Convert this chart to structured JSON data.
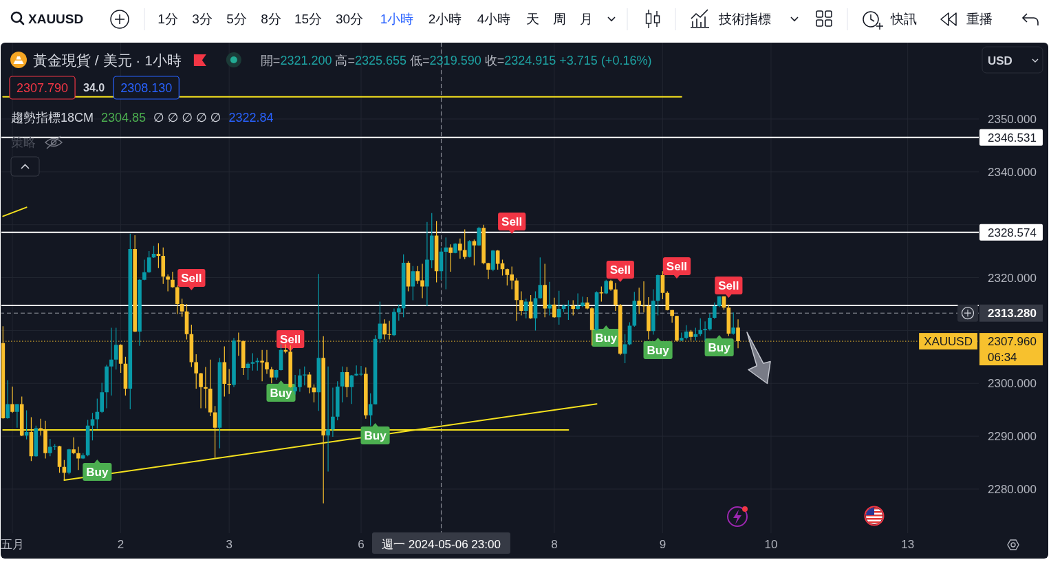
{
  "chart_data": {
    "type": "candlestick",
    "title": "黃金現貨 / 美元 · 1小時",
    "subtitle": "開=2321.200 高=2325.655 低=2319.590 收=2324.915 +3.715 (+0.16%)",
    "categories": [
      null,
      null,
      "五月",
      null,
      null,
      null,
      null,
      null,
      null,
      null,
      null,
      null,
      null,
      null,
      null,
      null,
      null,
      null,
      null,
      null,
      null,
      null,
      null,
      null,
      null,
      "2",
      null,
      null,
      null,
      null,
      null,
      null,
      null,
      null,
      null,
      null,
      null,
      null,
      null,
      null,
      null,
      null,
      null,
      null,
      null,
      null,
      null,
      null,
      "3",
      null,
      null,
      null,
      null,
      null,
      null,
      null,
      null,
      null,
      null,
      null,
      null,
      null,
      null,
      null,
      null,
      null,
      null,
      null,
      null,
      null,
      null,
      null,
      null,
      null,
      null,
      null,
      "6",
      null,
      null,
      null,
      null,
      null,
      null,
      null,
      null,
      null,
      null,
      null,
      null,
      null,
      null,
      null,
      null,
      "週一 2024-05-06 23:00",
      null,
      null,
      null,
      null,
      null,
      null,
      null,
      null,
      null,
      null,
      null,
      null,
      null,
      null,
      null,
      null,
      null,
      null,
      null,
      null,
      null,
      null,
      null,
      "8",
      null,
      null,
      null,
      null,
      null,
      null,
      null,
      null,
      null,
      null,
      null,
      null,
      null,
      null,
      null,
      null,
      null,
      null,
      null,
      null,
      null,
      null,
      "9",
      null,
      null,
      null,
      null,
      null,
      null,
      null,
      null,
      null,
      null,
      null,
      null,
      null,
      null,
      null,
      null,
      null,
      null,
      null,
      null,
      null,
      null,
      "10",
      null,
      null,
      null,
      null,
      null,
      null,
      null,
      null,
      null,
      null,
      null,
      null,
      null,
      null,
      null,
      null,
      null,
      null,
      null,
      null,
      null,
      null,
      null,
      null,
      null,
      null,
      null,
      null,
      "13",
      null,
      null,
      null,
      null,
      null,
      null,
      null,
      null,
      null,
      null,
      null,
      null,
      null,
      null
    ],
    "ohlc": [
      [
        2307.6,
        2310.8,
        2293.3,
        2293.4
      ],
      [
        2293.4,
        2300.6,
        2293.3,
        2296.05
      ],
      [
        2296.05,
        2299.4,
        2294.4,
        2294.6
      ],
      [
        2294.6,
        2296.1,
        2291.6,
        2296.05
      ],
      [
        2296.05,
        2297.5,
        2290.0,
        2290.1
      ],
      [
        2290.1,
        2294.9,
        2289.4,
        2290.8
      ],
      [
        2290.8,
        2293.6,
        2285.3,
        2286.2
      ],
      [
        2286.2,
        2292.0,
        2286.1,
        2291.5
      ],
      [
        2291.5,
        2293.3,
        2290.1,
        2291.2
      ],
      [
        2291.2,
        2292.9,
        2285.8,
        2286.8
      ],
      [
        2286.8,
        2289.5,
        2286.2,
        2288.0
      ],
      [
        2288.0,
        2288.5,
        2287.4,
        2288.1
      ],
      [
        2288.1,
        2288.2,
        2283.1,
        2284.2
      ],
      [
        2284.2,
        2285.5,
        2281.8,
        2283.1
      ],
      [
        2283.1,
        2287.6,
        2282.8,
        2287.5
      ],
      [
        2287.5,
        2289.8,
        2286.6,
        2286.8
      ],
      [
        2286.8,
        2288.0,
        2283.6,
        2285.8
      ],
      [
        2285.8,
        2286.8,
        2285.7,
        2286.4
      ],
      [
        2286.4,
        2293.1,
        2286.2,
        2292.0
      ],
      [
        2292.0,
        2294.4,
        2289.2,
        2293.2
      ],
      [
        2293.2,
        2297.1,
        2291.4,
        2294.6
      ],
      [
        2294.6,
        2300.1,
        2294.4,
        2298.3
      ],
      [
        2298.3,
        2303.5,
        2295.3,
        2303.2
      ],
      [
        2303.2,
        2310.5,
        2297.7,
        2304.5
      ],
      [
        2304.5,
        2310.5,
        2302.6,
        2307.3
      ],
      [
        2307.3,
        2307.4,
        2302.0,
        2303.7
      ],
      [
        2303.7,
        2305.0,
        2297.7,
        2299.0
      ],
      [
        2299.0,
        2328.3,
        2295.1,
        2325.4
      ],
      [
        2325.4,
        2328.0,
        2309.7,
        2309.8
      ],
      [
        2309.8,
        2319.7,
        2307.1,
        2319.6
      ],
      [
        2319.6,
        2323.4,
        2319.5,
        2321.0
      ],
      [
        2321.0,
        2325.0,
        2320.9,
        2323.8
      ],
      [
        2323.8,
        2326.0,
        2323.7,
        2324.5
      ],
      [
        2324.5,
        2326.5,
        2321.8,
        2324.1
      ],
      [
        2324.1,
        2325.7,
        2318.8,
        2320.2
      ],
      [
        2320.2,
        2320.6,
        2317.4,
        2319.6
      ],
      [
        2319.6,
        2321.1,
        2318.1,
        2318.2
      ],
      [
        2318.2,
        2318.5,
        2313.1,
        2315.0
      ],
      [
        2315.0,
        2316.0,
        2312.6,
        2313.6
      ],
      [
        2313.6,
        2315.0,
        2308.3,
        2309.3
      ],
      [
        2309.3,
        2311.1,
        2303.1,
        2304.0
      ],
      [
        2304.0,
        2305.5,
        2299.0,
        2301.9
      ],
      [
        2301.9,
        2302.0,
        2295.3,
        2299.3
      ],
      [
        2299.3,
        2303.1,
        2295.3,
        2299.0
      ],
      [
        2299.0,
        2304.5,
        2293.8,
        2294.5
      ],
      [
        2294.5,
        2295.7,
        2285.9,
        2291.6
      ],
      [
        2291.6,
        2304.8,
        2287.7,
        2304.0
      ],
      [
        2304.0,
        2307.0,
        2297.5,
        2299.9
      ],
      [
        2299.9,
        2302.7,
        2298.0,
        2299.7
      ],
      [
        2299.7,
        2308.6,
        2299.3,
        2308.1
      ],
      [
        2308.1,
        2309.6,
        2305.2,
        2307.95
      ],
      [
        2308.0,
        2308.1,
        2301.6,
        2302.9
      ],
      [
        2302.9,
        2304.0,
        2300.7,
        2303.7
      ],
      [
        2303.7,
        2305.7,
        2302.4,
        2304.0
      ],
      [
        2304.0,
        2304.8,
        2302.4,
        2304.25
      ],
      [
        2304.25,
        2306.3,
        2300.4,
        2303.95
      ],
      [
        2304.0,
        2306.3,
        2301.8,
        2302.65
      ],
      [
        2302.65,
        2303.1,
        2300.0,
        2301.1
      ],
      [
        2301.1,
        2302.6,
        2300.7,
        2302.5
      ],
      [
        2302.5,
        2307.4,
        2302.4,
        2306.3
      ],
      [
        2306.3,
        2307.4,
        2305.7,
        2306.0
      ],
      [
        2306.0,
        2307.2,
        2299.2,
        2299.3
      ],
      [
        2298.5,
        2301.6,
        2297.9,
        2299.3
      ],
      [
        2299.3,
        2302.7,
        2298.4,
        2301.5
      ],
      [
        2301.5,
        2303.2,
        2299.6,
        2301.65
      ],
      [
        2301.65,
        2302.1,
        2298.1,
        2299.2
      ],
      [
        2299.2,
        2299.8,
        2296.4,
        2298.3
      ],
      [
        2298.3,
        2320.7,
        2294.8,
        2304.8
      ],
      [
        2304.8,
        2308.9,
        2277.3,
        2290.15
      ],
      [
        2290.15,
        2303.2,
        2283.3,
        2291.3
      ],
      [
        2291.3,
        2299.2,
        2289.9,
        2293.7
      ],
      [
        2293.7,
        2300.4,
        2293.0,
        2299.4
      ],
      [
        2299.4,
        2303.2,
        2296.4,
        2302.1
      ],
      [
        2302.1,
        2303.1,
        2297.4,
        2299.3
      ],
      [
        2299.3,
        2301.6,
        2296.1,
        2301.5
      ],
      [
        2301.5,
        2303.4,
        2301.4,
        2301.8
      ],
      [
        2301.8,
        2303.3,
        2301.4,
        2301.8
      ],
      [
        2301.8,
        2303.0,
        2293.3,
        2293.95
      ],
      [
        2293.95,
        2298.1,
        2292.0,
        2296.05
      ],
      [
        2296.05,
        2309.1,
        2296.0,
        2308.4
      ],
      [
        2308.4,
        2315.45,
        2307.6,
        2311.3
      ],
      [
        2311.3,
        2312.1,
        2308.3,
        2309.25
      ],
      [
        2309.3,
        2311.8,
        2308.3,
        2309.2
      ],
      [
        2309.1,
        2314.15,
        2308.95,
        2313.5
      ],
      [
        2313.4,
        2314.9,
        2311.85,
        2314.2
      ],
      [
        2314.2,
        2324.4,
        2312.5,
        2322.8
      ],
      [
        2322.8,
        2323.1,
        2317.4,
        2318.3
      ],
      [
        2318.3,
        2322.2,
        2315.7,
        2321.2
      ],
      [
        2321.2,
        2322.2,
        2318.8,
        2319.4
      ],
      [
        2319.5,
        2322.6,
        2316.1,
        2318.3
      ],
      [
        2318.3,
        2330.5,
        2314.6,
        2323.4
      ],
      [
        2323.3,
        2332.2,
        2321.75,
        2327.95
      ],
      [
        2327.95,
        2330.7,
        2319.1,
        2321.2
      ],
      [
        2321.2,
        2325.655,
        2319.59,
        2324.915
      ],
      [
        2324.9,
        2327.6,
        2317.8,
        2325.7
      ],
      [
        2325.7,
        2326.3,
        2321.1,
        2324.65
      ],
      [
        2324.65,
        2326.5,
        2324.6,
        2326.4
      ],
      [
        2326.4,
        2327.4,
        2323.6,
        2325.1
      ],
      [
        2325.2,
        2329.1,
        2323.5,
        2323.9
      ],
      [
        2323.9,
        2327.05,
        2323.8,
        2326.9
      ],
      [
        2326.9,
        2327.2,
        2322.3,
        2326.1
      ],
      [
        2326.1,
        2329.6,
        2326.0,
        2329.4
      ],
      [
        2329.4,
        2330.0,
        2322.5,
        2322.75
      ],
      [
        2322.75,
        2322.8,
        2319.7,
        2321.5
      ],
      [
        2321.5,
        2325.2,
        2321.2,
        2325.1
      ],
      [
        2325.1,
        2325.2,
        2321.5,
        2322.6
      ],
      [
        2322.7,
        2323.4,
        2320.4,
        2321.6
      ],
      [
        2321.6,
        2321.7,
        2318.5,
        2320.5
      ],
      [
        2320.6,
        2322.1,
        2317.8,
        2319.45
      ],
      [
        2319.45,
        2319.9,
        2311.8,
        2315.75
      ],
      [
        2315.75,
        2317.4,
        2312.85,
        2313.7
      ],
      [
        2313.7,
        2316.0,
        2312.3,
        2315.45
      ],
      [
        2315.45,
        2316.7,
        2312.2,
        2312.3
      ],
      [
        2312.3,
        2317.4,
        2310.0,
        2316.1
      ],
      [
        2316.1,
        2323.8,
        2316.0,
        2318.6
      ],
      [
        2318.6,
        2322.6,
        2312.5,
        2314.15
      ],
      [
        2314.15,
        2319.2,
        2312.85,
        2314.9
      ],
      [
        2314.9,
        2316.2,
        2312.4,
        2312.5
      ],
      [
        2312.5,
        2317.5,
        2311.1,
        2314.1
      ],
      [
        2314.1,
        2314.9,
        2313.5,
        2314.7
      ],
      [
        2314.6,
        2315.7,
        2312.0,
        2314.8
      ],
      [
        2314.7,
        2315.7,
        2312.85,
        2314.1
      ],
      [
        2314.1,
        2317.0,
        2313.9,
        2314.6
      ],
      [
        2314.6,
        2316.4,
        2314.4,
        2315.3
      ],
      [
        2315.3,
        2316.3,
        2314.0,
        2314.15
      ],
      [
        2314.2,
        2314.45,
        2307.2,
        2310.1
      ],
      [
        2310.1,
        2317.4,
        2310.0,
        2317.2
      ],
      [
        2317.2,
        2318.3,
        2315.45,
        2317.0
      ],
      [
        2317.0,
        2319.6,
        2316.9,
        2319.35
      ],
      [
        2319.35,
        2319.6,
        2317.5,
        2317.75
      ],
      [
        2317.75,
        2319.0,
        2313.7,
        2314.8
      ],
      [
        2314.8,
        2315.0,
        2305.35,
        2305.6
      ],
      [
        2305.6,
        2309.3,
        2303.8,
        2307.4
      ],
      [
        2307.4,
        2311.55,
        2307.2,
        2310.9
      ],
      [
        2310.9,
        2317.3,
        2310.7,
        2315.6
      ],
      [
        2315.6,
        2318.1,
        2313.1,
        2314.7
      ],
      [
        2314.7,
        2319.3,
        2313.4,
        2314.6
      ],
      [
        2314.6,
        2316.3,
        2308.3,
        2309.9
      ],
      [
        2309.9,
        2317.8,
        2309.2,
        2315.6
      ],
      [
        2315.6,
        2320.6,
        2312.85,
        2320.45
      ],
      [
        2320.45,
        2321.2,
        2315.9,
        2317.1
      ],
      [
        2317.1,
        2317.4,
        2313.8,
        2313.85
      ],
      [
        2313.85,
        2313.9,
        2311.5,
        2312.75
      ],
      [
        2312.75,
        2312.8,
        2307.9,
        2308.1
      ],
      [
        2308.1,
        2309.6,
        2308.0,
        2308.6
      ],
      [
        2308.6,
        2311.0,
        2308.3,
        2309.8
      ],
      [
        2309.8,
        2310.1,
        2308.1,
        2308.8
      ],
      [
        2308.8,
        2310.5,
        2308.1,
        2309.3
      ],
      [
        2309.3,
        2312.3,
        2308.95,
        2310.1
      ],
      [
        2310.1,
        2311.7,
        2308.1,
        2310.3
      ],
      [
        2310.2,
        2313.2,
        2310.0,
        2312.4
      ],
      [
        2312.4,
        2315.3,
        2312.2,
        2314.6
      ],
      [
        2314.6,
        2316.5,
        2314.4,
        2316.45
      ],
      [
        2316.45,
        2316.5,
        2313.9,
        2314.3
      ],
      [
        2314.3,
        2314.9,
        2308.95,
        2309.4
      ],
      [
        2309.4,
        2313.4,
        2309.2,
        2310.55
      ],
      [
        2310.55,
        2312.1,
        2306.65,
        2307.96
      ],
      null,
      null,
      null,
      null,
      null,
      null,
      null,
      null,
      null,
      null,
      null,
      null,
      null,
      null,
      null,
      null,
      null,
      null,
      null,
      null,
      null,
      null,
      null,
      null,
      null,
      null,
      null,
      null,
      null,
      null,
      null,
      null,
      null,
      null,
      null,
      null,
      null,
      null,
      null,
      null,
      null,
      null,
      null,
      null,
      null,
      null,
      null,
      null,
      null,
      null
    ],
    "colors": [
      "#fbc02d",
      "#089aa8",
      "#fbc02d",
      "#089aa8",
      "#fbc02d",
      "#089aa8",
      "#fbc02d",
      "#089aa8",
      "#fbc02d",
      "#fbc02d",
      "#089aa8",
      "#089aa8",
      "#fbc02d",
      "#fbc02d",
      "#089aa8",
      "#fbc02d",
      "#fbc02d",
      "#089aa8",
      "#089aa8",
      "#089aa8",
      "#089aa8",
      "#089aa8",
      "#089aa8",
      "#089aa8",
      "#089aa8",
      "#fbc02d",
      "#fbc02d",
      "#089aa8",
      "#fbc02d",
      "#089aa8",
      "#089aa8",
      "#089aa8",
      "#089aa8",
      "#fbc02d",
      "#fbc02d",
      "#fbc02d",
      "#fbc02d",
      "#fbc02d",
      "#fbc02d",
      "#fbc02d",
      "#fbc02d",
      "#fbc02d",
      "#fbc02d",
      "#fbc02d",
      "#fbc02d",
      "#fbc02d",
      "#089aa8",
      "#fbc02d",
      "#fbc02d",
      "#089aa8",
      "#fbc02d",
      "#fbc02d",
      "#089aa8",
      "#089aa8",
      "#089aa8",
      "#fbc02d",
      "#fbc02d",
      "#fbc02d",
      "#089aa8",
      "#089aa8",
      "#fbc02d",
      "#fbc02d",
      "#089aa8",
      "#089aa8",
      "#089aa8",
      "#fbc02d",
      "#fbc02d",
      "#089aa8",
      "#fbc02d",
      "#089aa8",
      "#089aa8",
      "#089aa8",
      "#089aa8",
      "#fbc02d",
      "#089aa8",
      "#089aa8",
      "#089aa8",
      "#fbc02d",
      "#089aa8",
      "#089aa8",
      "#089aa8",
      "#fbc02d",
      "#fbc02d",
      "#089aa8",
      "#089aa8",
      "#089aa8",
      "#fbc02d",
      "#089aa8",
      "#fbc02d",
      "#fbc02d",
      "#089aa8",
      "#089aa8",
      "#fbc02d",
      "#089aa8",
      "#089aa8",
      "#fbc02d",
      "#089aa8",
      "#fbc02d",
      "#fbc02d",
      "#089aa8",
      "#fbc02d",
      "#089aa8",
      "#fbc02d",
      "#fbc02d",
      "#089aa8",
      "#fbc02d",
      "#fbc02d",
      "#fbc02d",
      "#fbc02d",
      "#fbc02d",
      "#fbc02d",
      "#089aa8",
      "#fbc02d",
      "#089aa8",
      "#089aa8",
      "#fbc02d",
      "#089aa8",
      "#fbc02d",
      "#089aa8",
      "#089aa8",
      "#089aa8",
      "#fbc02d",
      "#089aa8",
      "#089aa8",
      "#fbc02d",
      "#fbc02d",
      "#089aa8",
      "#fbc02d",
      "#089aa8",
      "#fbc02d",
      "#fbc02d",
      "#fbc02d",
      "#089aa8",
      "#089aa8",
      "#089aa8",
      "#fbc02d",
      "#fbc02d",
      "#fbc02d",
      "#089aa8",
      "#089aa8",
      "#fbc02d",
      "#fbc02d",
      "#fbc02d",
      "#fbc02d",
      "#089aa8",
      "#089aa8",
      "#fbc02d",
      "#089aa8",
      "#089aa8",
      "#089aa8",
      "#089aa8",
      "#089aa8",
      "#089aa8",
      "#fbc02d",
      "#fbc02d",
      "#089aa8",
      "#fbc02d",
      null,
      null,
      null,
      null,
      null,
      null,
      null,
      null,
      null,
      null,
      null,
      null,
      null,
      null,
      null,
      null,
      null,
      null,
      null,
      null,
      null,
      null,
      null,
      null,
      null,
      null,
      null,
      null,
      null,
      null,
      null,
      null,
      null,
      null,
      null,
      null,
      null,
      null,
      null,
      null,
      null,
      null,
      null,
      null,
      null,
      null,
      null,
      null,
      null,
      null
    ],
    "series": [
      {
        "type": "line",
        "color": "#f5e11e",
        "values": [
          2354.2,
          null,
          null,
          null,
          null,
          null,
          null,
          null,
          null,
          null,
          null,
          null,
          null,
          null,
          null,
          null,
          null,
          null,
          null,
          null,
          null,
          null,
          null,
          null,
          null,
          null,
          null,
          null,
          null,
          null,
          null,
          null,
          null,
          null,
          null,
          null,
          null,
          null,
          null,
          null,
          null,
          null,
          null,
          null,
          null,
          null,
          null,
          null,
          null,
          null,
          null,
          null,
          null,
          null,
          null,
          null,
          null,
          null,
          null,
          null,
          null,
          null,
          null,
          null,
          null,
          null,
          null,
          null,
          null,
          null,
          null,
          null,
          null,
          null,
          null,
          null,
          null,
          null,
          null,
          null,
          null,
          null,
          null,
          null,
          null,
          null,
          null,
          null,
          null,
          null,
          null,
          null,
          null,
          null,
          null,
          null,
          null,
          null,
          null,
          null,
          null,
          null,
          null,
          null,
          null,
          null,
          null,
          null,
          null,
          null,
          null,
          null,
          null,
          null,
          null,
          null,
          null,
          null,
          null,
          null,
          null,
          null,
          null,
          null,
          null,
          null,
          null,
          null,
          null,
          null,
          null,
          null,
          null,
          null,
          null,
          null,
          null,
          null,
          null,
          null,
          null,
          null,
          null,
          null,
          2354.2,
          null,
          null,
          null,
          null,
          null,
          null,
          null,
          null,
          null,
          null,
          null,
          null,
          null,
          null,
          null,
          null,
          null,
          null,
          null,
          null,
          null,
          null,
          null,
          null,
          null,
          null,
          null,
          null,
          null,
          null,
          null,
          null,
          null,
          null,
          null,
          null,
          null,
          null,
          null,
          null,
          null,
          null,
          null,
          null,
          null,
          null,
          null,
          null,
          null,
          null,
          null,
          null,
          null,
          null,
          null,
          null,
          null,
          null,
          null,
          null,
          null,
          null
        ]
      },
      {
        "type": "line",
        "color": "#f5e11e",
        "values": [
          2291.2,
          null,
          null,
          null,
          null,
          null,
          null,
          null,
          null,
          null,
          null,
          null,
          null,
          null,
          null,
          null,
          null,
          null,
          null,
          null,
          null,
          null,
          null,
          null,
          null,
          null,
          null,
          null,
          null,
          null,
          null,
          null,
          null,
          null,
          null,
          null,
          null,
          null,
          null,
          null,
          null,
          null,
          null,
          null,
          null,
          null,
          null,
          null,
          null,
          null,
          null,
          null,
          null,
          null,
          null,
          null,
          null,
          null,
          null,
          null,
          null,
          null,
          null,
          null,
          null,
          null,
          null,
          null,
          null,
          null,
          null,
          null,
          null,
          null,
          null,
          null,
          null,
          null,
          null,
          null,
          null,
          null,
          null,
          null,
          null,
          null,
          null,
          null,
          null,
          null,
          null,
          null,
          null,
          null,
          null,
          null,
          null,
          null,
          null,
          null,
          null,
          null,
          null,
          null,
          null,
          null,
          null,
          null,
          null,
          null,
          null,
          null,
          null,
          null,
          null,
          null,
          null,
          null,
          null,
          null,
          2291.2,
          null,
          null,
          null,
          null,
          null,
          null,
          null,
          null,
          null,
          null,
          null,
          null,
          null,
          null,
          null,
          null,
          null,
          null,
          null,
          null,
          null,
          null,
          null,
          null,
          null,
          null,
          null,
          null,
          null,
          null,
          null,
          null,
          null,
          null,
          null,
          null,
          null,
          null,
          null,
          null,
          null,
          null,
          null,
          null,
          null,
          null,
          null,
          null,
          null,
          null,
          null,
          null,
          null,
          null,
          null,
          null,
          null,
          null,
          null,
          null,
          null,
          null,
          null,
          null,
          null,
          null,
          null,
          null,
          null,
          null,
          null,
          null,
          null,
          null,
          null,
          null,
          null,
          null,
          null,
          null,
          null,
          null,
          null,
          null,
          null,
          null
        ]
      },
      {
        "type": "line",
        "color": "#f5e11e",
        "values": [
          null,
          null,
          null,
          null,
          null,
          null,
          null,
          null,
          null,
          null,
          null,
          null,
          null,
          2281.7,
          null,
          null,
          null,
          null,
          null,
          null,
          null,
          null,
          null,
          null,
          null,
          null,
          null,
          null,
          null,
          null,
          null,
          null,
          null,
          null,
          null,
          null,
          null,
          null,
          null,
          null,
          null,
          null,
          null,
          null,
          null,
          null,
          null,
          null,
          null,
          null,
          null,
          null,
          null,
          null,
          null,
          null,
          null,
          null,
          null,
          null,
          null,
          null,
          null,
          null,
          null,
          null,
          null,
          null,
          null,
          null,
          null,
          null,
          null,
          null,
          null,
          null,
          null,
          null,
          null,
          null,
          null,
          null,
          null,
          null,
          null,
          null,
          null,
          null,
          null,
          null,
          null,
          null,
          null,
          null,
          null,
          null,
          null,
          null,
          null,
          null,
          null,
          null,
          null,
          null,
          null,
          null,
          null,
          null,
          null,
          null,
          null,
          null,
          null,
          null,
          null,
          null,
          null,
          null,
          null,
          null,
          null,
          null,
          null,
          null,
          null,
          null,
          2296.1,
          null,
          null,
          null,
          null,
          null,
          null,
          null,
          null,
          null,
          null,
          null,
          null,
          null,
          null,
          null,
          null,
          null,
          null,
          null,
          null,
          null,
          null,
          null,
          null,
          null,
          null,
          null,
          null,
          null,
          null,
          null,
          null,
          null,
          null,
          null,
          null,
          null,
          null,
          null,
          null,
          null,
          null,
          null,
          null,
          null,
          null,
          null,
          null,
          null,
          null,
          null,
          null,
          null,
          null,
          null,
          null,
          null,
          null,
          null,
          null,
          null,
          null,
          null,
          null,
          null,
          null,
          null,
          null,
          null,
          null,
          null,
          null,
          null,
          null,
          null,
          null,
          null,
          null,
          null,
          null
        ]
      },
      {
        "type": "line",
        "color": "#f5e11e",
        "values": [
          2331.6,
          null,
          null,
          null,
          null,
          2333.3,
          null,
          null,
          null,
          null,
          null,
          null,
          null,
          null,
          null,
          null,
          null,
          null,
          null,
          null,
          null,
          null,
          null,
          null,
          null,
          null,
          null,
          null,
          null,
          null,
          null,
          null,
          null,
          null,
          null,
          null,
          null,
          null,
          null,
          null,
          null,
          null,
          null,
          null,
          null,
          null,
          null,
          null,
          null,
          null,
          null,
          null,
          null,
          null,
          null,
          null,
          null,
          null,
          null,
          null,
          null,
          null,
          null,
          null,
          null,
          null,
          null,
          null,
          null,
          null,
          null,
          null,
          null,
          null,
          null,
          null,
          null,
          null,
          null,
          null,
          null,
          null,
          null,
          null,
          null,
          null,
          null,
          null,
          null,
          null,
          null,
          null,
          null,
          null,
          null,
          null,
          null,
          null,
          null,
          null,
          null,
          null,
          null,
          null,
          null,
          null,
          null,
          null,
          null,
          null,
          null,
          null,
          null,
          null,
          null,
          null,
          null,
          null,
          null,
          null,
          null,
          null,
          null,
          null,
          null,
          null,
          null,
          null,
          null,
          null,
          null,
          null,
          null,
          null,
          null,
          null,
          null,
          null,
          null,
          null,
          null,
          null,
          null,
          null,
          null,
          null,
          null,
          null,
          null,
          null,
          null,
          null,
          null,
          null,
          null,
          null,
          null,
          null,
          null,
          null,
          null,
          null,
          null,
          null,
          null,
          null,
          null,
          null,
          null,
          null,
          null,
          null,
          null,
          null,
          null,
          null,
          null,
          null,
          null,
          null,
          null,
          null,
          null,
          null,
          null,
          null,
          null,
          null,
          null,
          null,
          null,
          null,
          null,
          null,
          null,
          null,
          null,
          null,
          null,
          null,
          null,
          null,
          null,
          null,
          null,
          null,
          null
        ]
      }
    ],
    "ylim": [
      2271.67,
      2364.44
    ],
    "yticks": [
      {
        "value": 2280,
        "label": "2280.000"
      },
      {
        "value": 2290,
        "label": "2290.000"
      },
      {
        "value": 2300,
        "label": "2300.000"
      },
      {
        "value": 2310,
        "label": null
      },
      {
        "value": 2320,
        "label": "2320.000"
      },
      {
        "value": 2330,
        "label": null
      },
      {
        "value": 2340,
        "label": "2340.000"
      },
      {
        "value": 2350,
        "label": "2350.000"
      }
    ],
    "grid": true,
    "ref_lines": [
      {
        "axis": "y",
        "value": 2346.531,
        "label": "2346.531",
        "color": "#ffffff"
      },
      {
        "axis": "y",
        "value": 2328.574,
        "label": "2328.574",
        "color": "#ffffff"
      },
      {
        "axis": "y",
        "value": 2314.75,
        "color": "#ffffff"
      },
      {
        "axis": "y",
        "value": 2313.28,
        "label": "2313.280",
        "color": "#9598a1",
        "line_style": "dashed"
      },
      {
        "axis": "x",
        "value": "週一 2024-05-06 23:00",
        "color": "#9598a1",
        "line_style": "dashed"
      },
      {
        "axis": "y",
        "value": 2307.96,
        "label": "2307.960",
        "color": "#f7c12e",
        "line_style": "dotted"
      }
    ],
    "annotations": [
      "XAUUSD",
      "1分",
      "3分",
      "5分",
      "8分",
      "15分",
      "30分",
      "1小時",
      "2小時",
      "4小時",
      "天",
      "周",
      "月",
      "技術指標",
      "快訊",
      "重播",
      "2307.790",
      "34.0",
      "2308.130",
      "趨勢指標18CM",
      "2304.85",
      "∅ ∅ ∅ ∅ ∅",
      "2322.84",
      "策略",
      "USD",
      "XAUUSD",
      "06:34",
      "Buy",
      "Sell",
      "Buy",
      "Sell",
      "Buy",
      "Sell",
      "Buy",
      "Sell",
      "Buy",
      "Sell",
      "Buy",
      "Sell"
    ]
  }
}
